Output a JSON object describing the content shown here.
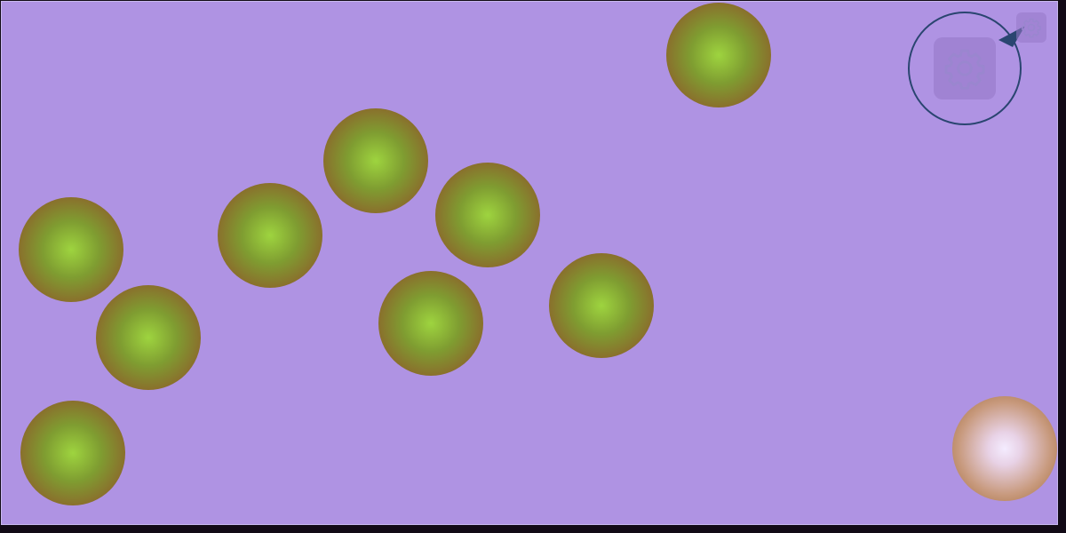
{
  "game": {
    "background_color": "#af93e3",
    "ball_colors": {
      "normal_center": "#9ed43f",
      "normal_edge": "#94602c",
      "active_center": "#f4ecff",
      "active_edge": "#a06836"
    },
    "balls": [
      {
        "id": "ball-1",
        "state": "normal"
      },
      {
        "id": "ball-2",
        "state": "normal"
      },
      {
        "id": "ball-3",
        "state": "normal"
      },
      {
        "id": "ball-4",
        "state": "normal"
      },
      {
        "id": "ball-5",
        "state": "normal"
      },
      {
        "id": "ball-6",
        "state": "normal"
      },
      {
        "id": "ball-7",
        "state": "normal"
      },
      {
        "id": "ball-8",
        "state": "normal"
      },
      {
        "id": "ball-9",
        "state": "normal"
      },
      {
        "id": "ball-10",
        "state": "normal"
      },
      {
        "id": "ball-11",
        "state": "active"
      }
    ]
  },
  "toolbar": {
    "settings_icon": "gear-icon"
  },
  "callout": {
    "icon": "gear-icon",
    "border_color": "#2a4570"
  }
}
